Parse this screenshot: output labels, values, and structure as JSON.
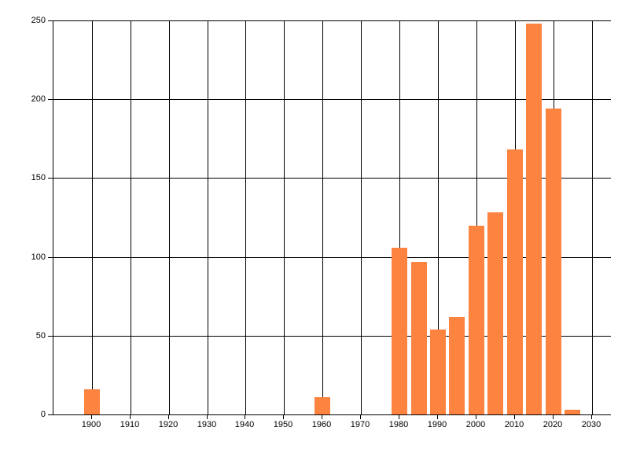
{
  "chart_data": {
    "type": "bar",
    "title": "",
    "xlabel": "",
    "ylabel": "",
    "x": [
      1900,
      1960,
      1980,
      1985,
      1990,
      1995,
      2000,
      2005,
      2010,
      2015,
      2020,
      2025
    ],
    "values": [
      16,
      11,
      106,
      97,
      54,
      62,
      120,
      128,
      168,
      248,
      194,
      3
    ],
    "bar_width_years": 4,
    "x_ticks": [
      1900,
      1910,
      1920,
      1930,
      1940,
      1950,
      1960,
      1970,
      1980,
      1990,
      2000,
      2010,
      2020,
      2030
    ],
    "y_ticks": [
      0,
      50,
      100,
      150,
      200,
      250
    ],
    "xlim": [
      1890,
      2035
    ],
    "ylim": [
      0,
      250
    ],
    "grid": true,
    "legend": false,
    "bar_color": "#FD8340",
    "grid_color": "#000000",
    "axis_color": "#000000",
    "text_color": "#000000",
    "background_color": "#FFFFFF"
  }
}
